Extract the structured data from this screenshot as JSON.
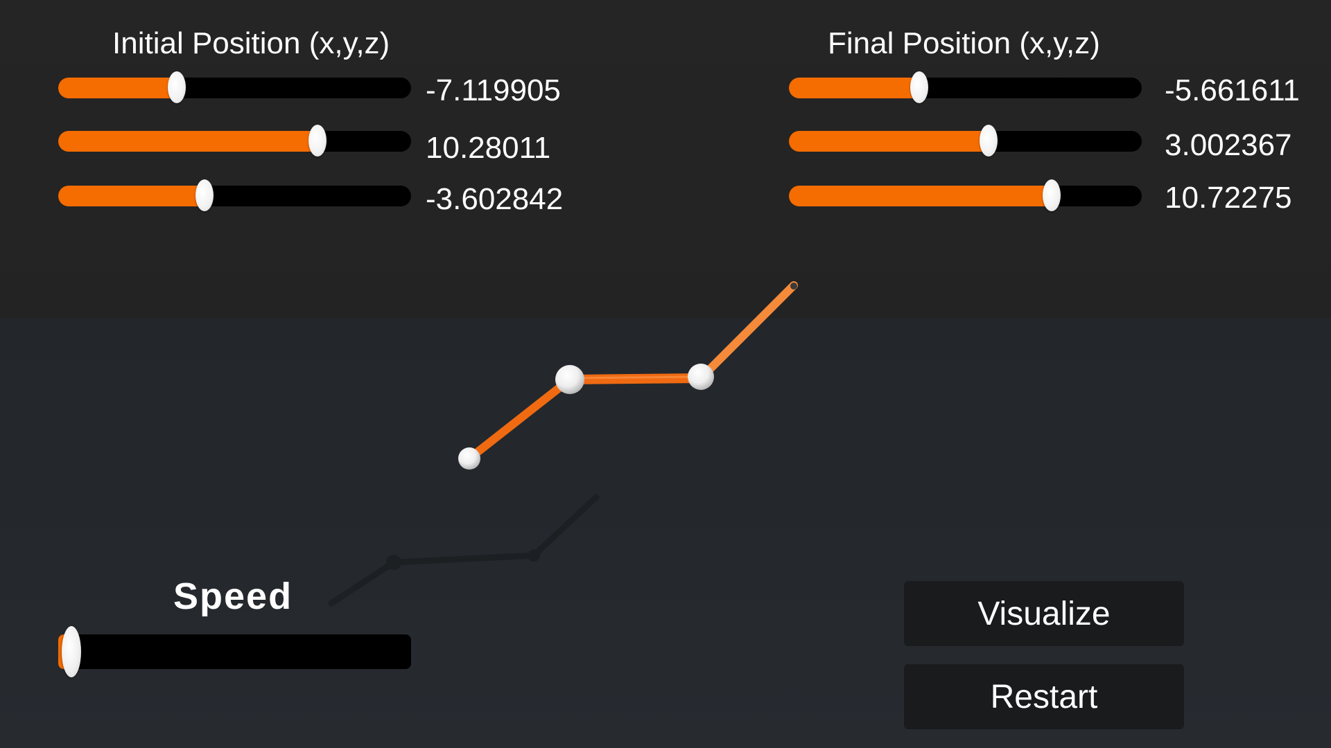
{
  "initial_position": {
    "title": "Initial Position (x,y,z)",
    "sliders": [
      {
        "axis": "x",
        "value_text": "-7.119905",
        "fill_fraction": 0.335
      },
      {
        "axis": "y",
        "value_text": "10.28011",
        "fill_fraction": 0.735
      },
      {
        "axis": "z",
        "value_text": "-3.602842",
        "fill_fraction": 0.415
      }
    ]
  },
  "final_position": {
    "title": "Final Position (x,y,z)",
    "sliders": [
      {
        "axis": "x",
        "value_text": "-5.661611",
        "fill_fraction": 0.37
      },
      {
        "axis": "y",
        "value_text": "3.002367",
        "fill_fraction": 0.565
      },
      {
        "axis": "z",
        "value_text": "10.72275",
        "fill_fraction": 0.745
      }
    ]
  },
  "speed": {
    "label": "Speed",
    "fill_fraction": 0.01
  },
  "buttons": {
    "visualize_label": "Visualize",
    "restart_label": "Restart"
  },
  "colors": {
    "accent": "#f56c00",
    "track": "#000000",
    "handle": "#f2f2f2",
    "button_bg": "#1a1b1d",
    "text": "#ffffff"
  }
}
